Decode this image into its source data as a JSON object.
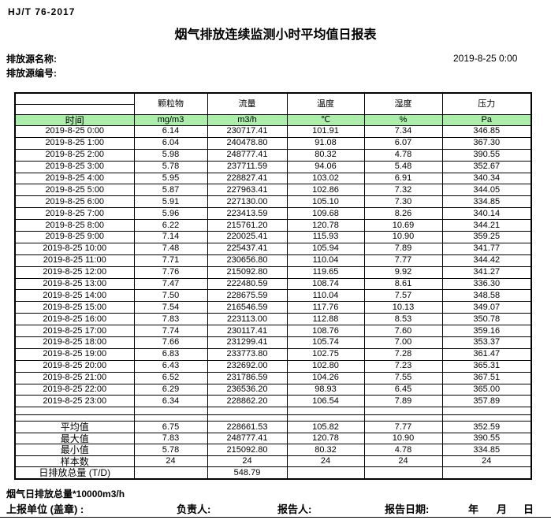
{
  "page": {
    "standard": "HJ/T 76-2017",
    "title": "烟气排放连续监测小时平均值日报表",
    "source_name_label": "排放源名称:",
    "source_code_label": "排放源编号:",
    "datetime": "2019-8-25 0:00"
  },
  "table": {
    "time_header": "时间",
    "param_headers": [
      "颗粒物",
      "流量",
      "温度",
      "湿度",
      "压力"
    ],
    "unit_headers": [
      "mg/m3",
      "m3/h",
      "℃",
      "%",
      "Pa"
    ],
    "rows": [
      {
        "time": "2019-8-25 0:00",
        "values": [
          "6.14",
          "230717.41",
          "101.91",
          "7.34",
          "346.85"
        ]
      },
      {
        "time": "2019-8-25 1:00",
        "values": [
          "6.04",
          "240478.80",
          "91.08",
          "6.07",
          "367.30"
        ]
      },
      {
        "time": "2019-8-25 2:00",
        "values": [
          "5.98",
          "248777.41",
          "80.32",
          "4.78",
          "390.55"
        ]
      },
      {
        "time": "2019-8-25 3:00",
        "values": [
          "5.78",
          "237711.59",
          "94.06",
          "5.48",
          "352.67"
        ]
      },
      {
        "time": "2019-8-25 4:00",
        "values": [
          "5.95",
          "228827.41",
          "103.02",
          "6.91",
          "340.34"
        ]
      },
      {
        "time": "2019-8-25 5:00",
        "values": [
          "5.87",
          "227963.41",
          "102.86",
          "7.32",
          "344.05"
        ]
      },
      {
        "time": "2019-8-25 6:00",
        "values": [
          "5.91",
          "227130.00",
          "105.10",
          "7.30",
          "334.85"
        ]
      },
      {
        "time": "2019-8-25 7:00",
        "values": [
          "5.96",
          "223413.59",
          "109.68",
          "8.26",
          "340.14"
        ]
      },
      {
        "time": "2019-8-25 8:00",
        "values": [
          "6.22",
          "215761.20",
          "120.78",
          "10.69",
          "344.21"
        ]
      },
      {
        "time": "2019-8-25 9:00",
        "values": [
          "7.14",
          "220025.41",
          "115.93",
          "10.90",
          "359.25"
        ]
      },
      {
        "time": "2019-8-25 10:00",
        "values": [
          "7.48",
          "225437.41",
          "105.94",
          "7.89",
          "341.77"
        ]
      },
      {
        "time": "2019-8-25 11:00",
        "values": [
          "7.71",
          "230656.80",
          "110.04",
          "7.77",
          "344.42"
        ]
      },
      {
        "time": "2019-8-25 12:00",
        "values": [
          "7.76",
          "215092.80",
          "119.65",
          "9.92",
          "341.27"
        ]
      },
      {
        "time": "2019-8-25 13:00",
        "values": [
          "7.47",
          "222480.59",
          "108.74",
          "8.61",
          "336.30"
        ]
      },
      {
        "time": "2019-8-25 14:00",
        "values": [
          "7.50",
          "228675.59",
          "110.04",
          "7.57",
          "348.58"
        ]
      },
      {
        "time": "2019-8-25 15:00",
        "values": [
          "7.54",
          "216546.59",
          "117.76",
          "10.13",
          "349.07"
        ]
      },
      {
        "time": "2019-8-25 16:00",
        "values": [
          "7.83",
          "223113.00",
          "112.88",
          "8.53",
          "350.78"
        ]
      },
      {
        "time": "2019-8-25 17:00",
        "values": [
          "7.74",
          "230117.41",
          "108.76",
          "7.60",
          "359.16"
        ]
      },
      {
        "time": "2019-8-25 18:00",
        "values": [
          "7.66",
          "231299.41",
          "105.74",
          "7.00",
          "353.37"
        ]
      },
      {
        "time": "2019-8-25 19:00",
        "values": [
          "6.83",
          "233773.80",
          "102.75",
          "7.28",
          "361.47"
        ]
      },
      {
        "time": "2019-8-25 20:00",
        "values": [
          "6.43",
          "232692.00",
          "102.80",
          "7.23",
          "365.31"
        ]
      },
      {
        "time": "2019-8-25 21:00",
        "values": [
          "6.52",
          "231786.59",
          "104.26",
          "7.55",
          "367.51"
        ]
      },
      {
        "time": "2019-8-25 22:00",
        "values": [
          "6.29",
          "236536.20",
          "98.93",
          "6.45",
          "365.00"
        ]
      },
      {
        "time": "2019-8-25 23:00",
        "values": [
          "6.34",
          "228862.20",
          "106.54",
          "7.89",
          "357.89"
        ]
      }
    ],
    "summary": [
      {
        "label": "平均值",
        "values": [
          "6.75",
          "228661.53",
          "105.82",
          "7.77",
          "352.59"
        ]
      },
      {
        "label": "最大值",
        "values": [
          "7.83",
          "248777.41",
          "120.78",
          "10.90",
          "390.55"
        ]
      },
      {
        "label": "最小值",
        "values": [
          "5.78",
          "215092.80",
          "80.32",
          "4.78",
          "334.85"
        ]
      },
      {
        "label": "样本数",
        "values": [
          "24",
          "24",
          "24",
          "24",
          "24"
        ]
      },
      {
        "label": "日排放总量 (T/D)",
        "values": [
          "",
          "548.79",
          "",
          "",
          ""
        ]
      }
    ]
  },
  "footer": {
    "note": "烟气日排放总量*10000m3/h",
    "unit_label": "上报单位 (盖章) :",
    "responsible_label": "负责人:",
    "reporter_label": "报告人:",
    "report_date_label": "报告日期:",
    "year_label": "年",
    "month_label": "月",
    "day_label": "日"
  },
  "colors": {
    "header_green": "#aaeeaa",
    "border": "#000000"
  }
}
